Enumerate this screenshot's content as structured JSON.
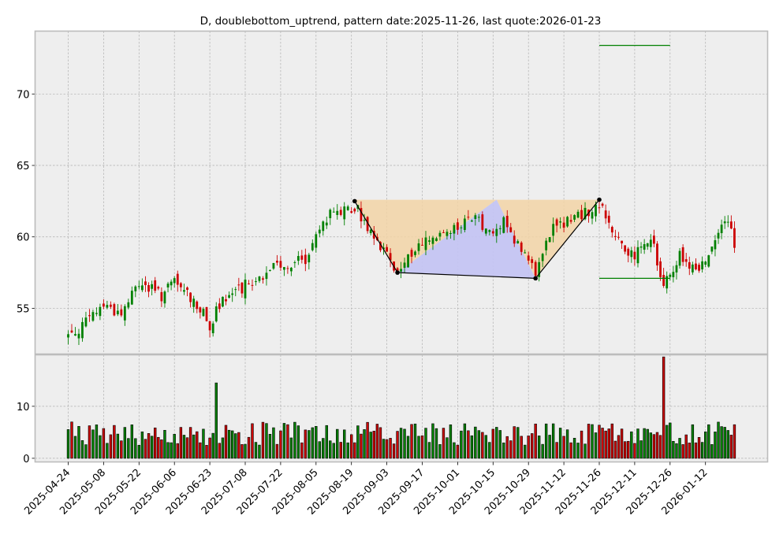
{
  "chart_data": {
    "type": "candlestick",
    "title": "D, doublebottom_uptrend, pattern date:2025-11-26, last quote:2026-01-23",
    "xlabel": "",
    "ylabel": "",
    "grid": true,
    "price_ylim": [
      51.8,
      74.4
    ],
    "price_yticks": [
      55,
      60,
      65,
      70
    ],
    "volume_ylim": [
      -0.7,
      19.9
    ],
    "volume_yticks": [
      0,
      10
    ],
    "x_ticks": [
      "2025-04-24",
      "2025-05-08",
      "2025-05-22",
      "2025-06-06",
      "2025-06-23",
      "2025-07-08",
      "2025-07-22",
      "2025-08-05",
      "2025-08-19",
      "2025-09-03",
      "2025-09-17",
      "2025-10-01",
      "2025-10-15",
      "2025-10-29",
      "2025-11-12",
      "2025-11-26",
      "2025-12-11",
      "2025-12-26",
      "2026-01-12"
    ],
    "colors": {
      "up": "#008000",
      "down": "#cc0000",
      "pattern_fill_orange": "#f2d4a6",
      "pattern_fill_blue": "#c4c4f2",
      "pattern_line": "#000000",
      "target_line": "#008000",
      "grid": "#b0b0b0",
      "panel_bg": "#eeeeee"
    },
    "pattern_points": [
      {
        "date": "2025-08-20",
        "price": 62.5
      },
      {
        "date": "2025-09-08",
        "price": 57.5
      },
      {
        "date": "2025-10-31",
        "price": 57.1
      },
      {
        "date": "2025-11-26",
        "price": 62.6
      }
    ],
    "pattern_mid_peak": {
      "date": "2025-10-16",
      "price": 62.6
    },
    "target_lines": [
      {
        "from": "2025-11-26",
        "to": "2025-12-26",
        "price": 73.4
      },
      {
        "from": "2025-11-26",
        "to": "2025-12-26",
        "price": 57.1
      }
    ],
    "close_series": [
      {
        "date": "2025-04-24",
        "close": 53.1
      },
      {
        "date": "2025-05-01",
        "close": 54.0
      },
      {
        "date": "2025-05-08",
        "close": 55.3
      },
      {
        "date": "2025-05-15",
        "close": 54.6
      },
      {
        "date": "2025-05-22",
        "close": 56.8
      },
      {
        "date": "2025-06-02",
        "close": 55.9
      },
      {
        "date": "2025-06-06",
        "close": 56.8
      },
      {
        "date": "2025-06-16",
        "close": 55.6
      },
      {
        "date": "2025-06-23",
        "close": 53.8
      },
      {
        "date": "2025-06-27",
        "close": 55.6
      },
      {
        "date": "2025-07-08",
        "close": 56.6
      },
      {
        "date": "2025-07-15",
        "close": 57.3
      },
      {
        "date": "2025-07-22",
        "close": 58.1
      },
      {
        "date": "2025-07-31",
        "close": 58.3
      },
      {
        "date": "2025-08-05",
        "close": 60.6
      },
      {
        "date": "2025-08-12",
        "close": 61.8
      },
      {
        "date": "2025-08-20",
        "close": 62.2
      },
      {
        "date": "2025-08-28",
        "close": 59.7
      },
      {
        "date": "2025-09-08",
        "close": 57.8
      },
      {
        "date": "2025-09-17",
        "close": 59.6
      },
      {
        "date": "2025-10-01",
        "close": 60.8
      },
      {
        "date": "2025-10-08",
        "close": 61.3
      },
      {
        "date": "2025-10-15",
        "close": 60.4
      },
      {
        "date": "2025-10-20",
        "close": 61.1
      },
      {
        "date": "2025-10-31",
        "close": 57.6
      },
      {
        "date": "2025-11-07",
        "close": 60.6
      },
      {
        "date": "2025-11-14",
        "close": 61.1
      },
      {
        "date": "2025-11-26",
        "close": 62.3
      },
      {
        "date": "2025-12-03",
        "close": 60.1
      },
      {
        "date": "2025-12-11",
        "close": 58.6
      },
      {
        "date": "2025-12-18",
        "close": 59.9
      },
      {
        "date": "2025-12-24",
        "close": 56.6
      },
      {
        "date": "2025-12-31",
        "close": 58.6
      },
      {
        "date": "2026-01-08",
        "close": 57.6
      },
      {
        "date": "2026-01-16",
        "close": 60.6
      },
      {
        "date": "2026-01-20",
        "close": 61.4
      },
      {
        "date": "2026-01-23",
        "close": 59.6
      }
    ],
    "volume_spikes": [
      {
        "date": "2025-06-25",
        "volume": 14.5
      },
      {
        "date": "2025-12-24",
        "volume": 19.5
      }
    ]
  }
}
